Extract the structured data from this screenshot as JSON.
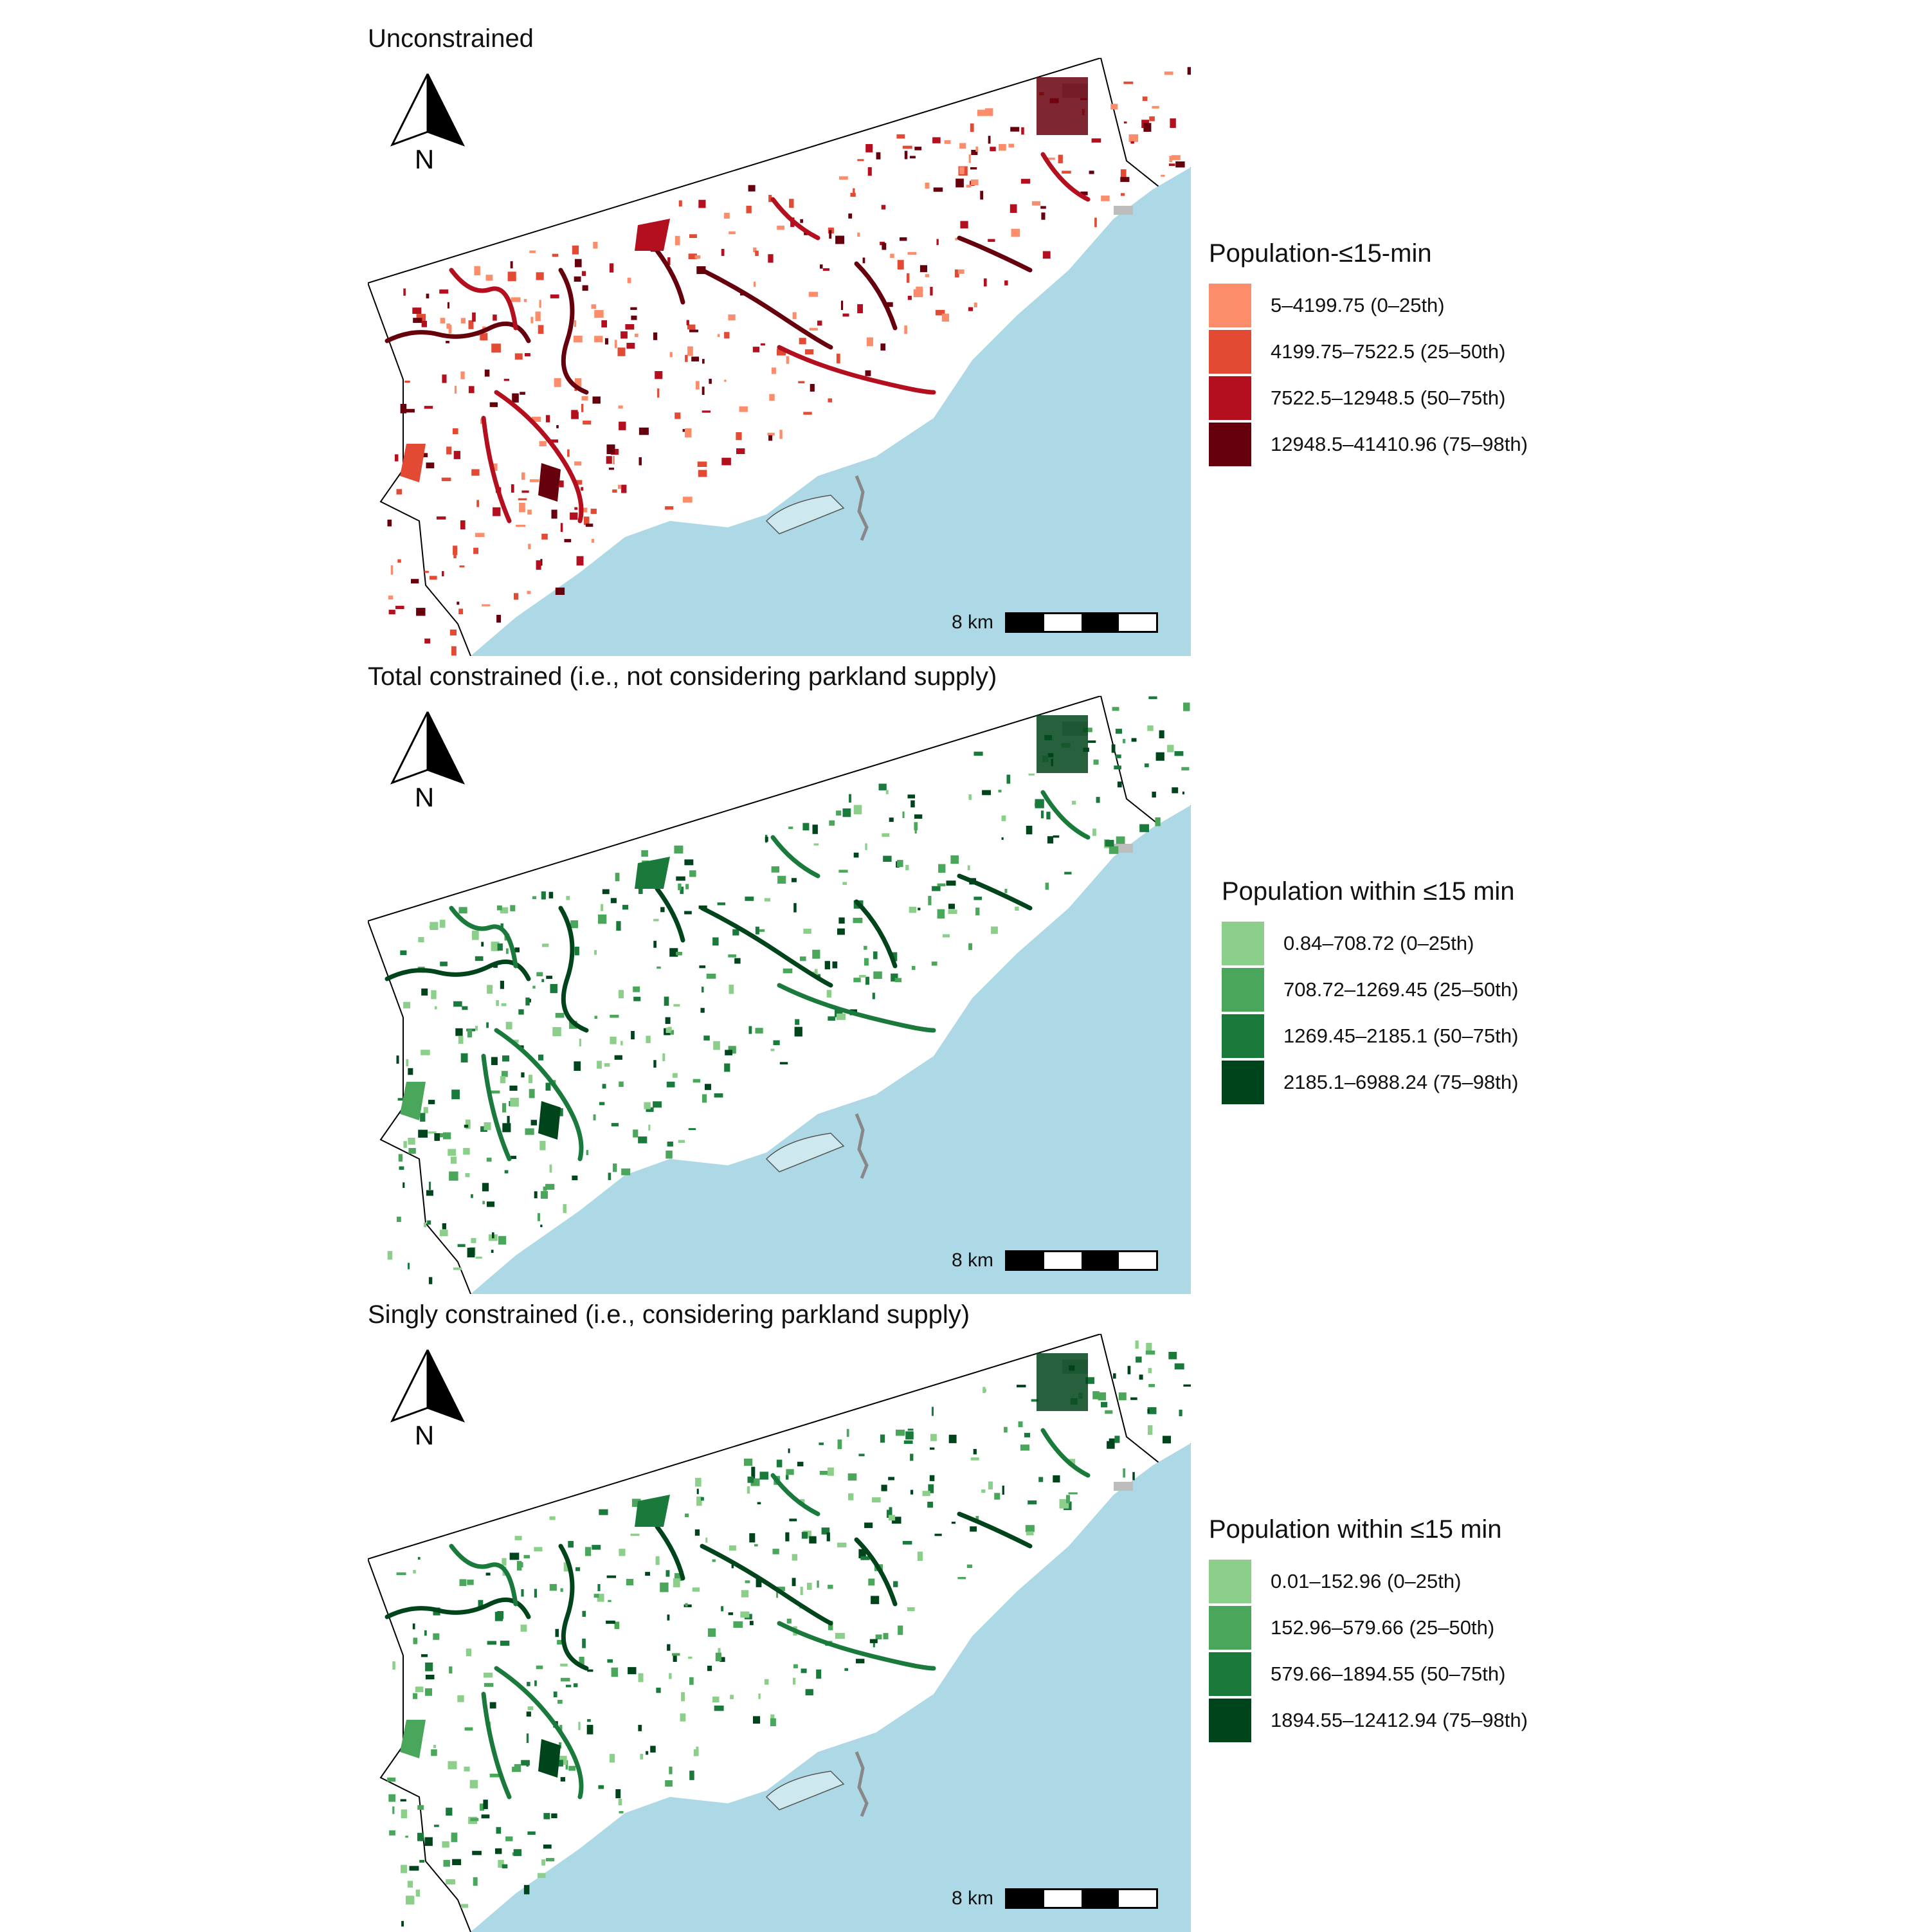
{
  "scale_bar_label": "8 km",
  "north_label": "N",
  "colors": {
    "water": "#add8e6",
    "land": "#ffffff",
    "unavailable": "#bdbdbd"
  },
  "panels": [
    {
      "title": "Unconstrained",
      "legend": {
        "title": "Population-≤15-min",
        "classes": [
          {
            "label": "5–4199.75 (0–25th)",
            "color": "#fc8d6a"
          },
          {
            "label": "4199.75–7522.5 (25–50th)",
            "color": "#e34a33"
          },
          {
            "label": "7522.5–12948.5 (50–75th)",
            "color": "#b30f1f"
          },
          {
            "label": "12948.5–41410.96 (75–98th)",
            "color": "#67000d"
          }
        ]
      }
    },
    {
      "title": "Total constrained (i.e., not considering parkland supply)",
      "legend": {
        "title": "Population within ≤15 min",
        "classes": [
          {
            "label": "0.84–708.72 (0–25th)",
            "color": "#8ccf8a"
          },
          {
            "label": "708.72–1269.45 (25–50th)",
            "color": "#4aa65a"
          },
          {
            "label": "1269.45–2185.1 (50–75th)",
            "color": "#1a7a3c"
          },
          {
            "label": "2185.1–6988.24 (75–98th)",
            "color": "#00441b"
          }
        ]
      }
    },
    {
      "title": "Singly constrained (i.e., considering parkland supply)",
      "legend": {
        "title": "Population within ≤15 min",
        "classes": [
          {
            "label": "0.01–152.96 (0–25th)",
            "color": "#8ccf8a"
          },
          {
            "label": "152.96–579.66 (25–50th)",
            "color": "#4aa65a"
          },
          {
            "label": "579.66–1894.55 (50–75th)",
            "color": "#1a7a3c"
          },
          {
            "label": "1894.55–12412.94 (75–98th)",
            "color": "#00441b"
          }
        ]
      }
    }
  ]
}
